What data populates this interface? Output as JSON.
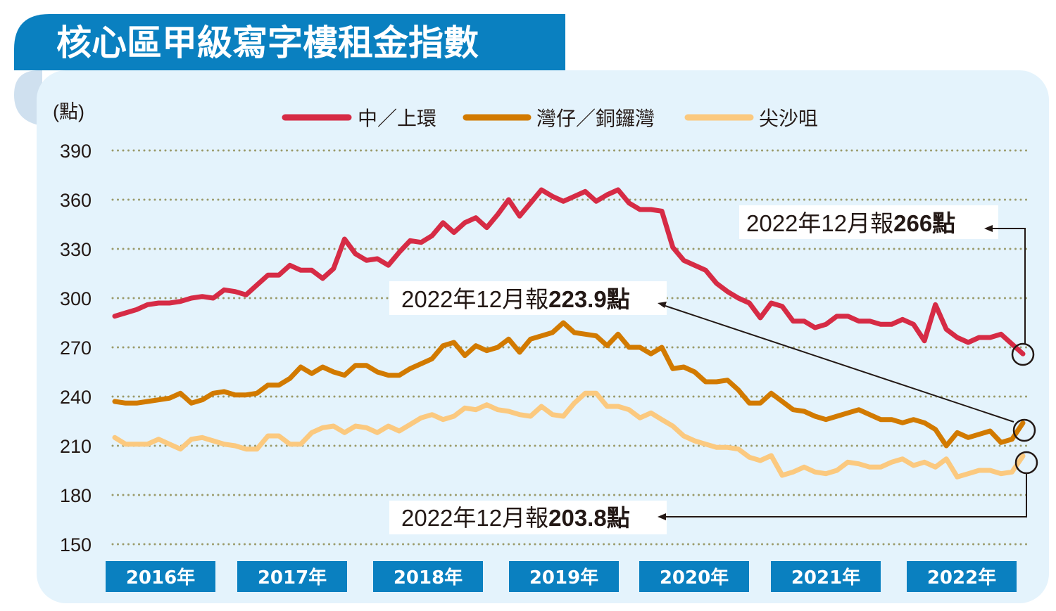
{
  "title": "核心區甲級寫字樓租金指數",
  "colors": {
    "banner": "#0a80c0",
    "panel": "#e4f3fc",
    "tab": "#cfe0ef",
    "grid": "#9a9a6a",
    "central": "#d62b45",
    "wanchai": "#d27a00",
    "tst": "#fbc97f"
  },
  "chart_data": {
    "type": "line",
    "title": "核心區甲級寫字樓租金指數",
    "ylabel": "(點)",
    "ylim": [
      150,
      390
    ],
    "yticks": [
      390,
      360,
      330,
      300,
      270,
      240,
      210,
      180,
      150
    ],
    "grid": "horizontal dotted",
    "legend_position": "top",
    "x_tick_labels": [
      "2016年",
      "2017年",
      "2018年",
      "2019年",
      "2020年",
      "2021年",
      "2022年"
    ],
    "x_start": "2016-01",
    "x_end": "2022-12",
    "x_frequency": "monthly",
    "series": [
      {
        "name": "中／上環",
        "color": "#d62b45",
        "values": [
          289,
          291,
          293,
          296,
          297,
          297,
          298,
          300,
          301,
          300,
          305,
          304,
          302,
          308,
          314,
          314,
          320,
          317,
          317,
          312,
          318,
          336,
          327,
          323,
          324,
          320,
          328,
          335,
          334,
          338,
          346,
          340,
          346,
          349,
          343,
          351,
          360,
          350,
          358,
          366,
          362,
          359,
          362,
          365,
          359,
          363,
          366,
          358,
          354,
          354,
          353,
          331,
          323,
          320,
          317,
          309,
          304,
          300,
          297,
          288,
          297,
          295,
          286,
          286,
          282,
          284,
          289,
          289,
          286,
          286,
          284,
          284,
          287,
          284,
          274,
          296,
          281,
          276,
          273,
          276,
          276,
          278,
          272,
          266
        ]
      },
      {
        "name": "灣仔／銅鑼灣",
        "color": "#d27a00",
        "values": [
          237,
          236,
          236,
          237,
          238,
          239,
          242,
          236,
          238,
          242,
          243,
          241,
          241,
          242,
          247,
          247,
          251,
          258,
          254,
          258,
          255,
          253,
          259,
          259,
          255,
          253,
          253,
          257,
          260,
          263,
          271,
          273,
          265,
          271,
          268,
          270,
          275,
          267,
          275,
          277,
          279,
          285,
          279,
          278,
          277,
          271,
          278,
          270,
          270,
          266,
          270,
          257,
          258,
          255,
          249,
          249,
          250,
          244,
          236,
          236,
          242,
          237,
          232,
          231,
          228,
          226,
          228,
          230,
          232,
          229,
          226,
          226,
          224,
          226,
          224,
          220,
          210,
          218,
          215,
          217,
          219,
          212,
          214,
          223.9
        ]
      },
      {
        "name": "尖沙咀",
        "color": "#fbc97f",
        "values": [
          215,
          211,
          211,
          211,
          214,
          211,
          208,
          214,
          215,
          213,
          211,
          210,
          208,
          208,
          216,
          216,
          211,
          211,
          218,
          221,
          222,
          218,
          222,
          221,
          218,
          222,
          219,
          223,
          227,
          229,
          226,
          228,
          233,
          232,
          235,
          232,
          231,
          229,
          228,
          234,
          229,
          228,
          236,
          242,
          242,
          234,
          234,
          232,
          227,
          230,
          226,
          222,
          216,
          213,
          211,
          209,
          209,
          208,
          203,
          201,
          204,
          192,
          194,
          197,
          194,
          193,
          195,
          200,
          199,
          197,
          197,
          200,
          202,
          198,
          200,
          197,
          202,
          191,
          193,
          195,
          195,
          193,
          194,
          203.8
        ]
      }
    ],
    "annotations": [
      {
        "prefix": "2022年12月報",
        "value": "266點"
      },
      {
        "prefix": "2022年12月報",
        "value": "223.9點"
      },
      {
        "prefix": "2022年12月報",
        "value": "203.8點"
      }
    ]
  }
}
